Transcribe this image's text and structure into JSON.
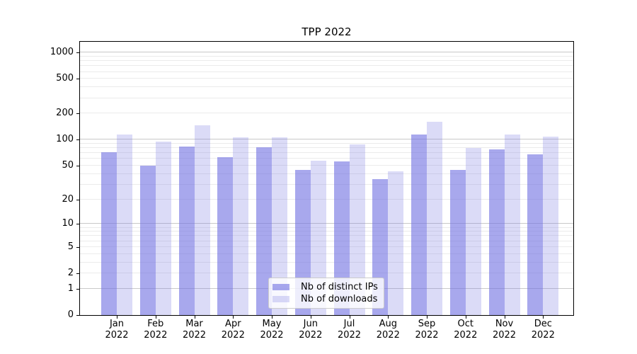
{
  "chart_data": {
    "type": "bar",
    "title": "TPP 2022",
    "scale": "log1p",
    "categories": [
      "Jan",
      "Feb",
      "Mar",
      "Apr",
      "May",
      "Jun",
      "Jul",
      "Aug",
      "Sep",
      "Oct",
      "Nov",
      "Dec"
    ],
    "category_year": "2022",
    "series": [
      {
        "name": "Nb of distinct IPs",
        "color": "rgba(114,114,226,0.62)",
        "values": [
          72,
          50,
          84,
          63,
          82,
          45,
          56,
          35,
          115,
          45,
          77,
          68
        ]
      },
      {
        "name": "Nb of downloads",
        "color": "rgba(114,114,226,0.26)",
        "values": [
          115,
          95,
          146,
          106,
          106,
          57,
          88,
          43,
          160,
          81,
          114,
          108
        ]
      }
    ],
    "yticks": [
      0,
      1,
      2,
      5,
      10,
      20,
      50,
      100,
      200,
      500,
      1000
    ],
    "ylim": [
      0,
      1330
    ],
    "grid": "on",
    "legend_position": "bottom-center",
    "colors": {
      "grid_major": "#c9c9c9",
      "grid_minor": "#ebebeb",
      "axis": "#000000",
      "legend_border": "#cccccc",
      "legend_background": "rgba(255,255,255,0.8)"
    }
  }
}
